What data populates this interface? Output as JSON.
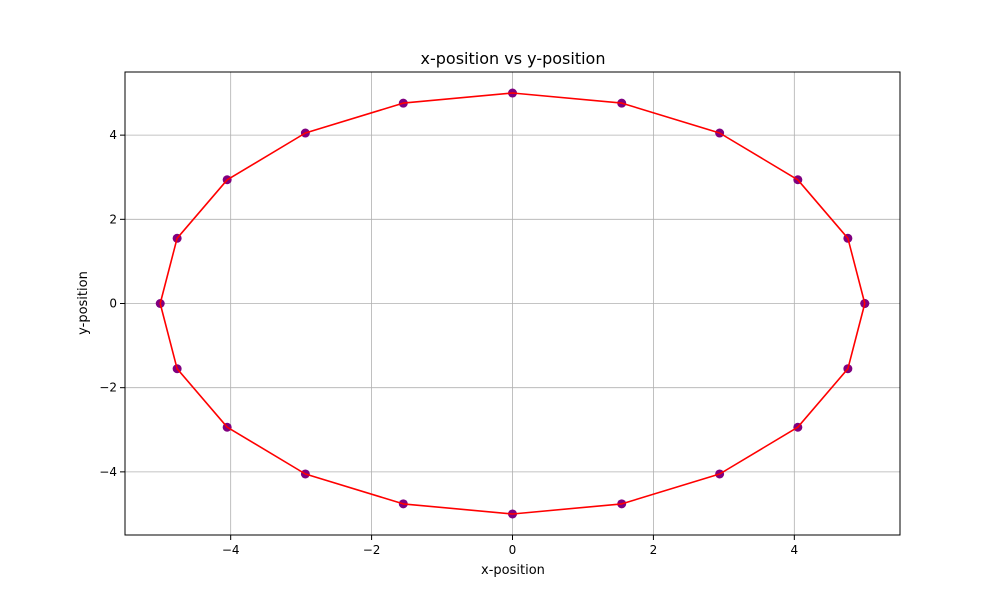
{
  "chart_data": {
    "type": "line",
    "title": "x-position vs y-position",
    "xlabel": "x-position",
    "ylabel": "y-position",
    "xlim": [
      -5.5,
      5.5
    ],
    "ylim": [
      -5.5,
      5.5
    ],
    "xticks": [
      -4,
      -2,
      0,
      2,
      4
    ],
    "yticks": [
      -4,
      -2,
      0,
      2,
      4
    ],
    "xtick_labels": [
      "−4",
      "−2",
      "0",
      "2",
      "4"
    ],
    "ytick_labels": [
      "−4",
      "−2",
      "0",
      "2",
      "4"
    ],
    "grid": true,
    "line_color": "#ff0000",
    "marker_color": "#800080",
    "series": [
      {
        "x": [
          5.0,
          4.76,
          4.05,
          2.94,
          1.55,
          0.0,
          -1.55,
          -2.94,
          -4.05,
          -4.76,
          -5.0,
          -4.76,
          -4.05,
          -2.94,
          -1.55,
          0.0,
          1.55,
          2.94,
          4.05,
          4.76,
          5.0
        ],
        "y": [
          0.0,
          1.55,
          2.94,
          4.05,
          4.76,
          5.0,
          4.76,
          4.05,
          2.94,
          1.55,
          0.0,
          -1.55,
          -2.94,
          -4.05,
          -4.76,
          -5.0,
          -4.76,
          -4.05,
          -2.94,
          -1.55,
          0.0
        ]
      }
    ]
  }
}
